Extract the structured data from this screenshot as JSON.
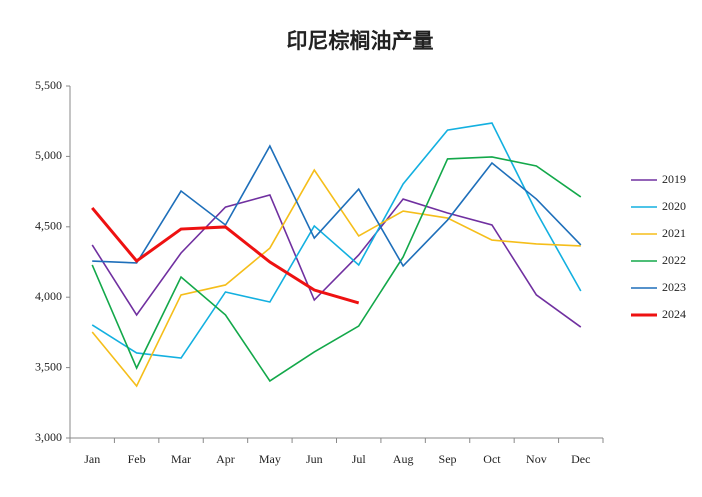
{
  "chart_data": {
    "type": "line",
    "title": "印尼棕榈油产量",
    "categories": [
      "Jan",
      "Feb",
      "Mar",
      "Apr",
      "May",
      "Jun",
      "Jul",
      "Aug",
      "Sep",
      "Oct",
      "Nov",
      "Dec"
    ],
    "ylim": [
      3000,
      5500
    ],
    "yticks": [
      {
        "value": 3000,
        "label": "3,000"
      },
      {
        "value": 3500,
        "label": "3,500"
      },
      {
        "value": 4000,
        "label": "4,000"
      },
      {
        "value": 4500,
        "label": "4,500"
      },
      {
        "value": 5000,
        "label": "5,000"
      },
      {
        "value": 5500,
        "label": "5,500"
      }
    ],
    "legend": "right",
    "series": [
      {
        "name": "2019",
        "color": "#7030a0",
        "values": [
          4371,
          3874,
          4314,
          4640,
          4726,
          3980,
          4300,
          4697,
          4598,
          4513,
          4016,
          3788
        ]
      },
      {
        "name": "2020",
        "color": "#13b0e0",
        "values": [
          3803,
          3604,
          3568,
          4037,
          3966,
          4506,
          4229,
          4804,
          5187,
          5237,
          4605,
          4044
        ]
      },
      {
        "name": "2021",
        "color": "#f5be1a",
        "values": [
          3753,
          3369,
          4016,
          4087,
          4349,
          4903,
          4435,
          4612,
          4562,
          4406,
          4378,
          4364
        ]
      },
      {
        "name": "2022",
        "color": "#13a84a",
        "values": [
          4229,
          3497,
          4143,
          3874,
          3405,
          3611,
          3795,
          4286,
          4982,
          4996,
          4932,
          4712
        ]
      },
      {
        "name": "2023",
        "color": "#1e6fba",
        "values": [
          4257,
          4243,
          4754,
          4513,
          5074,
          4420,
          4768,
          4222,
          4548,
          4953,
          4697,
          4371
        ]
      },
      {
        "name": "2024",
        "color": "#ee1111",
        "values": [
          4634,
          4257,
          4484,
          4499,
          4250,
          4051,
          3959,
          null,
          null,
          null,
          null,
          null
        ]
      }
    ]
  }
}
